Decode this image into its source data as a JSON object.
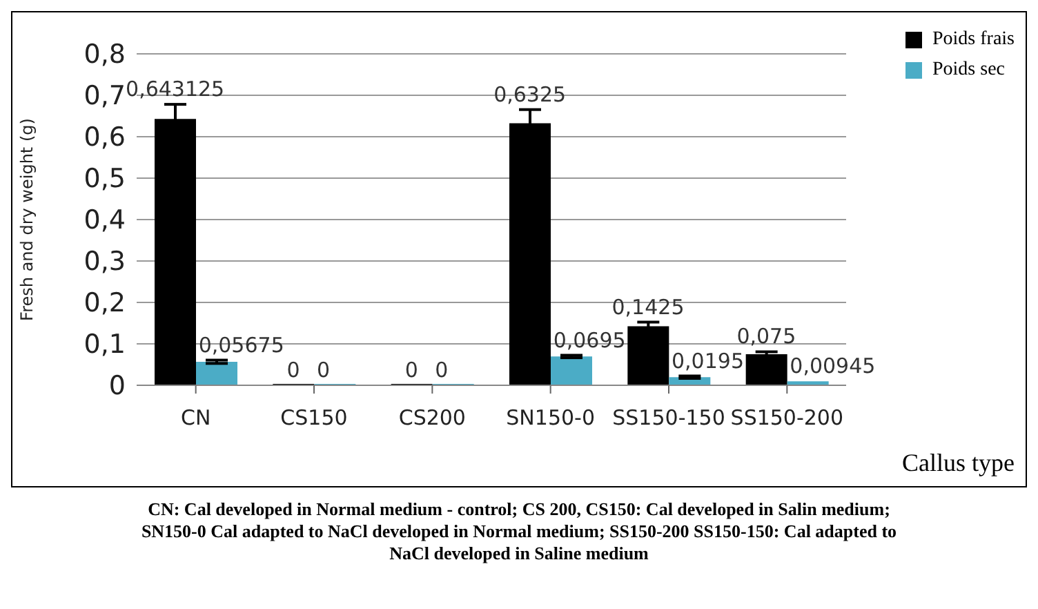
{
  "chart_data": {
    "type": "bar",
    "xlabel": "Callus type",
    "ylabel": "Fresh and dry weight  (g)",
    "categories": [
      "CN",
      "CS150",
      "CS200",
      "SN150-0",
      "SS150-150",
      "SS150-200"
    ],
    "series": [
      {
        "name": "Poids frais",
        "color": "#000000",
        "values": [
          0.643125,
          0,
          0,
          0.6325,
          0.1425,
          0.075
        ],
        "errors": [
          0.035,
          null,
          null,
          0.033,
          0.01,
          0.006
        ],
        "value_labels": [
          "0,643125",
          "0",
          "0",
          "0,6325",
          "0,1425",
          "0,075"
        ]
      },
      {
        "name": "Poids sec",
        "color": "#4bacc6",
        "values": [
          0.05675,
          0,
          0,
          0.0695,
          0.0195,
          0.00945
        ],
        "errors": [
          0.004,
          null,
          null,
          0.003,
          0.003,
          null
        ],
        "value_labels": [
          "0,05675",
          "0",
          "0",
          "0,0695",
          "0,0195",
          "0,00945"
        ]
      }
    ],
    "ylim": [
      0,
      0.8
    ],
    "yticks": [
      {
        "value": 0,
        "label": "0"
      },
      {
        "value": 0.1,
        "label": "0,1"
      },
      {
        "value": 0.2,
        "label": "0,2"
      },
      {
        "value": 0.3,
        "label": "0,3"
      },
      {
        "value": 0.4,
        "label": "0,4"
      },
      {
        "value": 0.5,
        "label": "0,5"
      },
      {
        "value": 0.6,
        "label": "0,6"
      },
      {
        "value": 0.7,
        "label": "0,7"
      },
      {
        "value": 0.8,
        "label": "0,8"
      }
    ],
    "grid": "y",
    "legend": "top right",
    "annotations": [
      "CN: Cal developed in Normal medium - control; CS 200, CS150: Cal developed in Salin medium; SN150-0 Cal adapted to NaCl developed in Normal medium; SS150-200 SS150-150: Cal adapted to NaCl developed in Saline medium"
    ]
  }
}
